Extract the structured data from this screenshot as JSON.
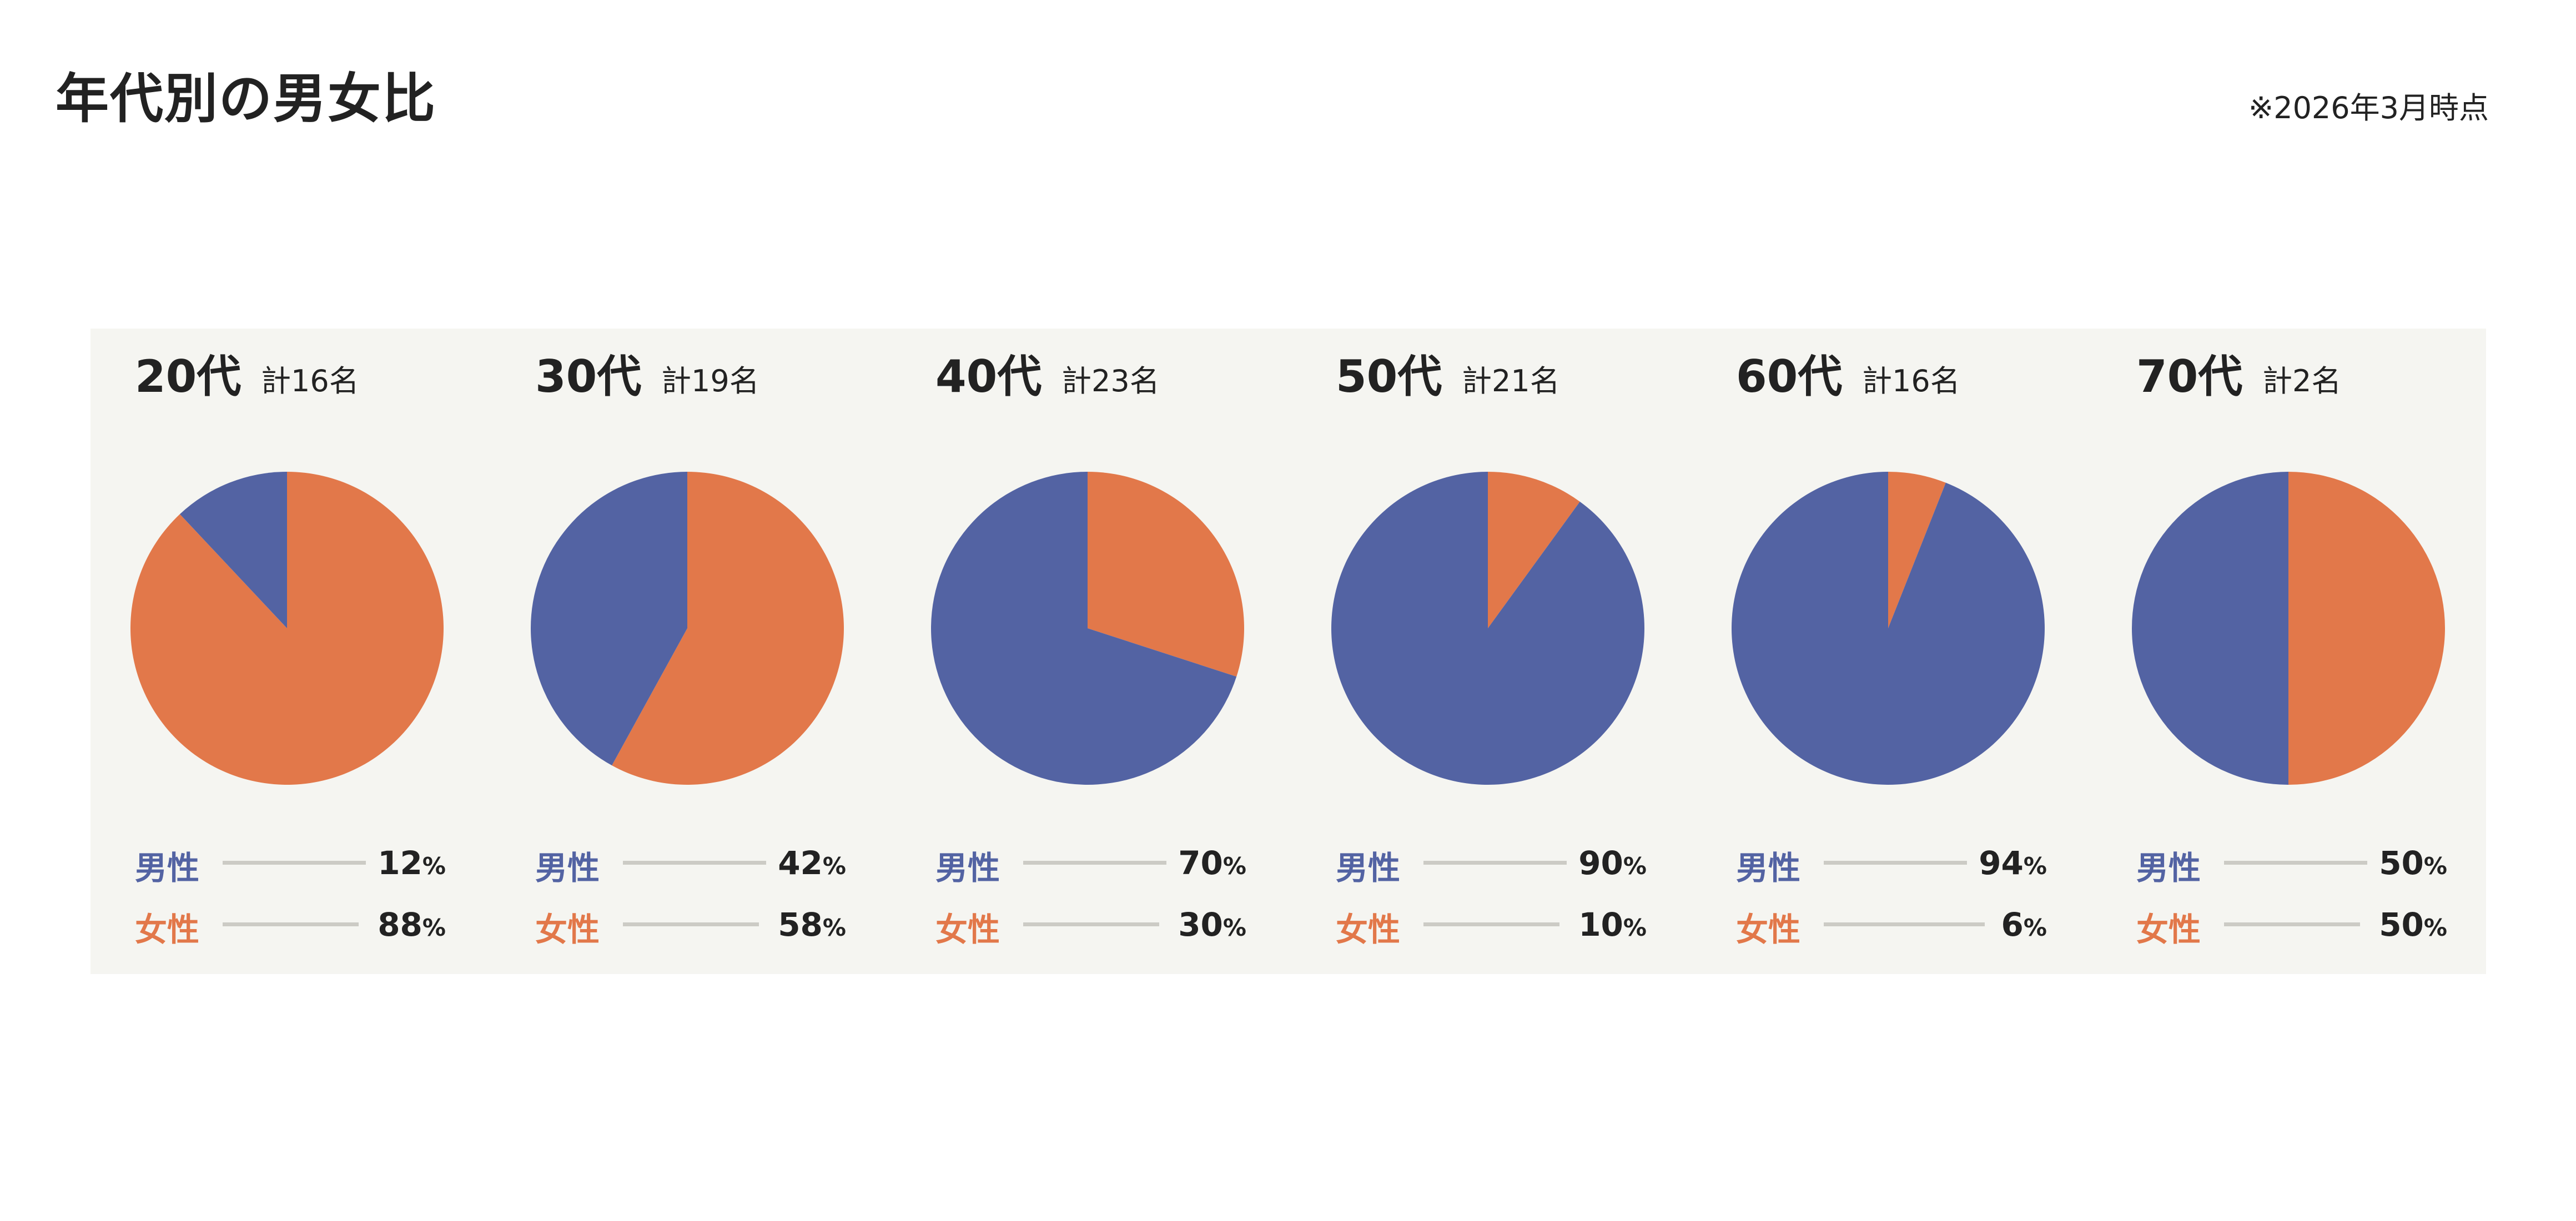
{
  "title": "年代別の男女比",
  "note": "※2026年3月時点",
  "colors": {
    "male": "#5363a3",
    "female": "#e2784a"
  },
  "chart_data": {
    "type": "pie",
    "title": "年代別の男女比",
    "legend": {
      "male": "男性",
      "female": "女性"
    },
    "unit": "%",
    "groups": [
      {
        "age": "20代",
        "total": "計16名",
        "male": 12,
        "female": 88
      },
      {
        "age": "30代",
        "total": "計19名",
        "male": 42,
        "female": 58
      },
      {
        "age": "40代",
        "total": "計23名",
        "male": 70,
        "female": 30
      },
      {
        "age": "50代",
        "total": "計21名",
        "male": 90,
        "female": 10
      },
      {
        "age": "60代",
        "total": "計16名",
        "male": 94,
        "female": 6
      },
      {
        "age": "70代",
        "total": "計2名",
        "male": 50,
        "female": 50
      }
    ]
  }
}
